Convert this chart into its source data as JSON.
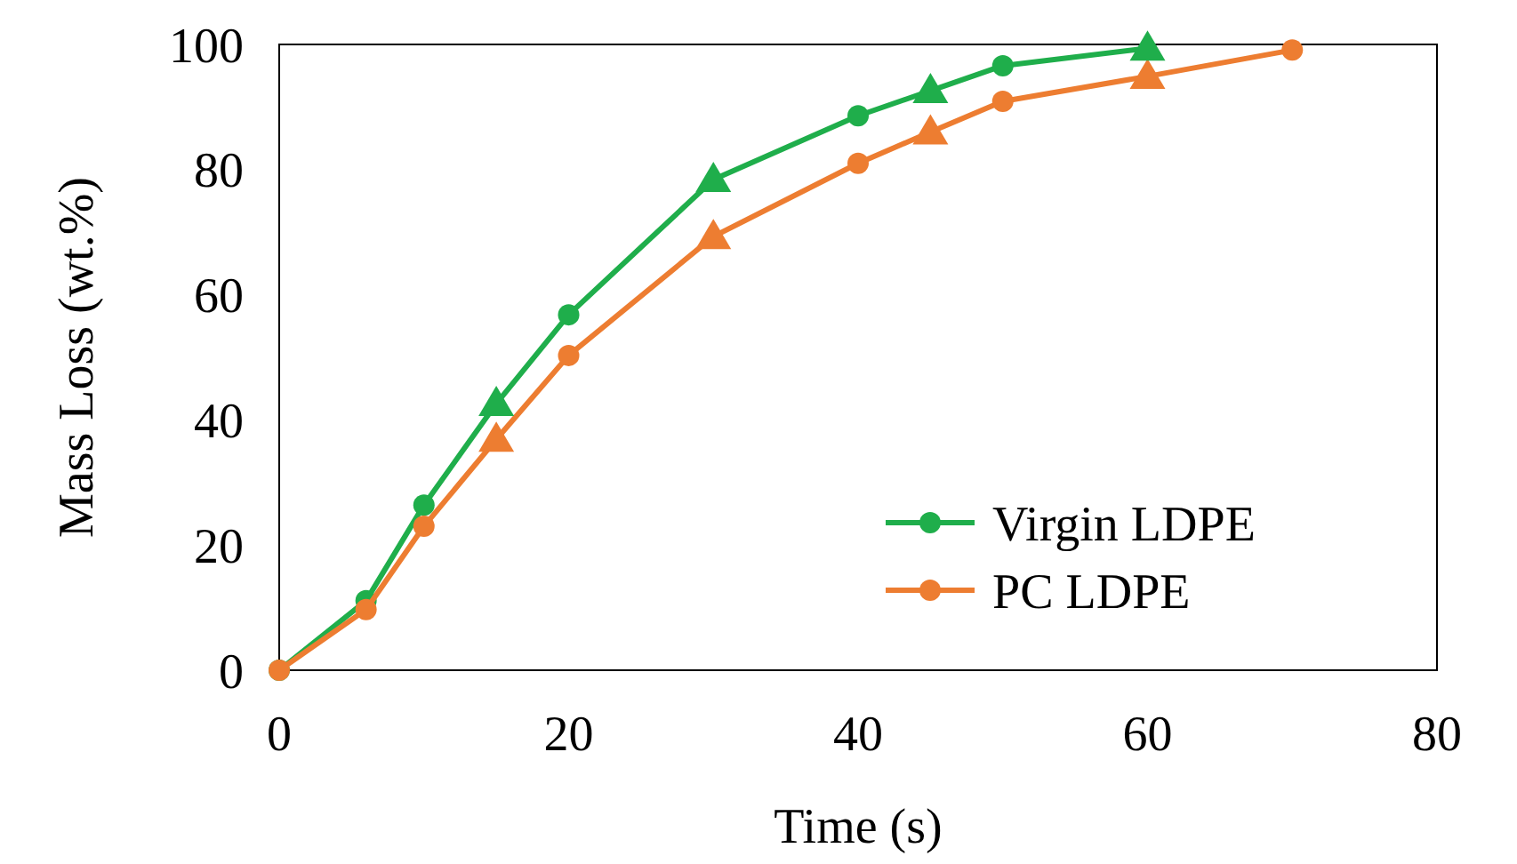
{
  "chart_data": {
    "type": "line",
    "xlabel": "Time (s)",
    "ylabel": "Mass Loss (wt.%)",
    "xlim": [
      0,
      80
    ],
    "xticks": [
      0,
      20,
      40,
      60,
      80
    ],
    "ylim": [
      0,
      100
    ],
    "yticks": [
      0,
      20,
      40,
      60,
      80,
      100
    ],
    "grid": false,
    "legend": "bottom right",
    "line_style": "solid",
    "series": [
      {
        "name": "Virgin LDPE",
        "color": "#1fae4b",
        "marker": "circle",
        "x": [
          0,
          6,
          10,
          15,
          20,
          30,
          40,
          45,
          50,
          60
        ],
        "values": [
          0,
          11.1,
          26.4,
          42.6,
          56.8,
          78.4,
          88.6,
          92.6,
          96.6,
          99.4
        ]
      },
      {
        "name": "PC LDPE",
        "color": "#ed7d31",
        "marker": "circle",
        "x": [
          0,
          6,
          10,
          15,
          20,
          30,
          40,
          45,
          50,
          60,
          70
        ],
        "values": [
          0,
          9.7,
          23,
          36.9,
          50.3,
          69.3,
          81,
          86,
          90.9,
          94.9,
          99.1
        ]
      },
      {
        "color": "#ed7d31",
        "type": "scatter",
        "marker": "triangle",
        "x": [
          15,
          30,
          45,
          60
        ],
        "values": [
          36.9,
          69.3,
          86,
          94.9
        ]
      },
      {
        "color": "#1fae4b",
        "type": "scatter",
        "marker": "triangle",
        "x": [
          15,
          30,
          45
        ],
        "values": [
          42.6,
          78.4,
          92.6
        ]
      },
      {
        "color": "#1fae4b",
        "type": "scatter",
        "marker": "triangle",
        "x": [
          60
        ],
        "values": [
          99.4
        ]
      }
    ]
  }
}
